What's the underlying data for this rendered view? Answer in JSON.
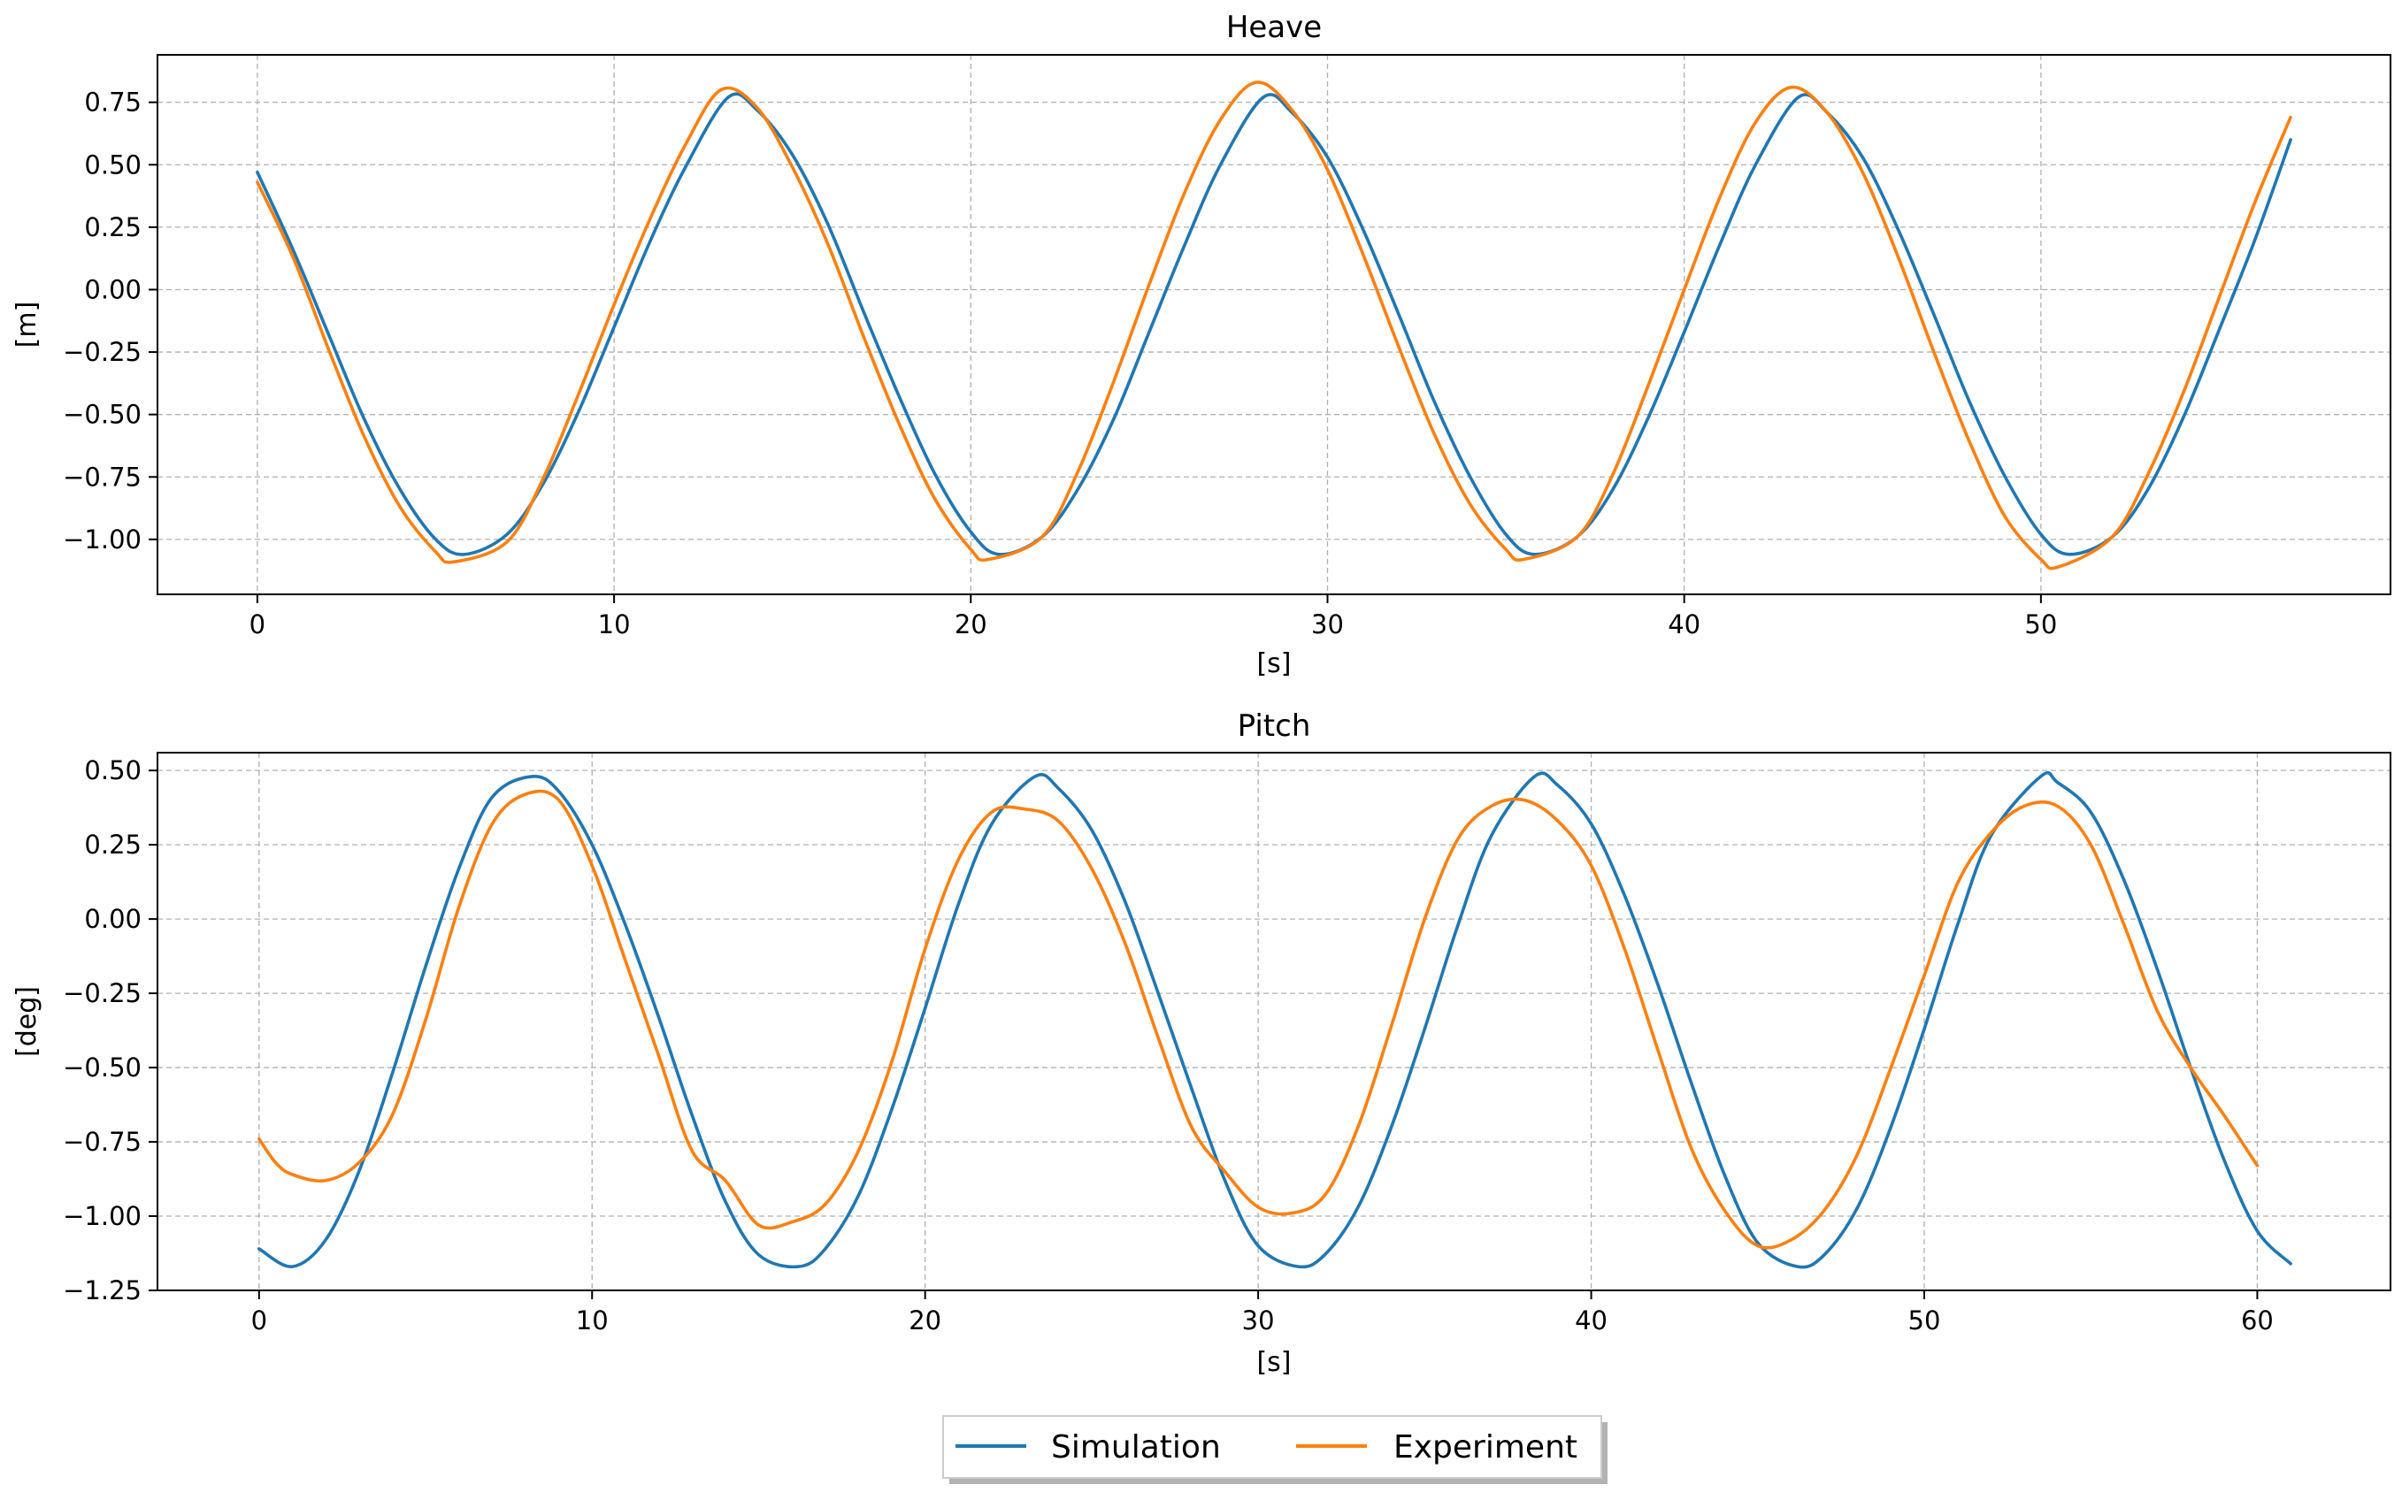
{
  "chart_data": [
    {
      "type": "line",
      "title": "Heave",
      "xlabel": "[s]",
      "ylabel": "[m]",
      "xlim": [
        -2.8,
        59.8
      ],
      "ylim": [
        -1.22,
        0.94
      ],
      "xticks": [
        0,
        10,
        20,
        30,
        40,
        50
      ],
      "xtick_labels": [
        "0",
        "10",
        "20",
        "30",
        "40",
        "50"
      ],
      "yticks": [
        -1.0,
        -0.75,
        -0.5,
        -0.25,
        0.0,
        0.25,
        0.5,
        0.75
      ],
      "ytick_labels": [
        "−1.00",
        "−0.75",
        "−0.50",
        "−0.25",
        "0.00",
        "0.25",
        "0.50",
        "0.75"
      ],
      "grid": true,
      "series": [
        {
          "name": "Simulation",
          "color": "#1f77b4",
          "x": [
            0,
            1,
            2,
            3,
            4,
            5,
            5.8,
            7,
            8,
            9,
            10,
            11,
            12,
            13.2,
            14,
            15,
            16,
            17,
            18,
            19,
            20,
            20.8,
            22,
            23,
            24,
            25,
            26,
            27,
            28.2,
            29,
            30,
            31,
            32,
            33,
            34,
            35,
            35.8,
            37,
            38,
            39,
            40,
            41,
            42,
            43.2,
            44,
            45,
            46,
            47,
            48,
            49,
            50,
            50.8,
            52,
            53,
            54,
            55,
            56,
            57
          ],
          "y": [
            0.47,
            0.16,
            -0.18,
            -0.52,
            -0.8,
            -1.0,
            -1.06,
            -0.98,
            -0.78,
            -0.49,
            -0.15,
            0.19,
            0.49,
            0.77,
            0.72,
            0.54,
            0.26,
            -0.09,
            -0.43,
            -0.74,
            -0.97,
            -1.06,
            -0.99,
            -0.8,
            -0.52,
            -0.17,
            0.18,
            0.5,
            0.77,
            0.71,
            0.53,
            0.24,
            -0.1,
            -0.45,
            -0.75,
            -0.98,
            -1.06,
            -0.99,
            -0.8,
            -0.51,
            -0.17,
            0.18,
            0.5,
            0.77,
            0.71,
            0.53,
            0.24,
            -0.1,
            -0.45,
            -0.75,
            -0.98,
            -1.06,
            -0.99,
            -0.8,
            -0.51,
            -0.16,
            0.2,
            0.6
          ]
        },
        {
          "name": "Experiment",
          "color": "#ff7f0e",
          "x": [
            0,
            1,
            2,
            3,
            4,
            5,
            5.5,
            7,
            8,
            9,
            10,
            11,
            12,
            13,
            14,
            15,
            16,
            17,
            18,
            19,
            20,
            20.5,
            22,
            23,
            24,
            25,
            26,
            27,
            28,
            29,
            30,
            31,
            32,
            33,
            34,
            35,
            35.5,
            37,
            38,
            39,
            40,
            41,
            42,
            43,
            44,
            45,
            46,
            47,
            48,
            49,
            50,
            50.5,
            52,
            53,
            54,
            55,
            56,
            57
          ],
          "y": [
            0.43,
            0.13,
            -0.24,
            -0.59,
            -0.87,
            -1.05,
            -1.09,
            -1.01,
            -0.76,
            -0.42,
            -0.06,
            0.28,
            0.58,
            0.8,
            0.73,
            0.49,
            0.18,
            -0.19,
            -0.54,
            -0.84,
            -1.04,
            -1.08,
            -0.99,
            -0.73,
            -0.37,
            0.02,
            0.39,
            0.68,
            0.83,
            0.72,
            0.48,
            0.14,
            -0.23,
            -0.58,
            -0.86,
            -1.04,
            -1.08,
            -0.99,
            -0.74,
            -0.38,
            0.0,
            0.37,
            0.67,
            0.81,
            0.71,
            0.47,
            0.13,
            -0.25,
            -0.61,
            -0.91,
            -1.08,
            -1.11,
            -0.99,
            -0.74,
            -0.41,
            -0.03,
            0.35,
            0.69
          ]
        }
      ]
    },
    {
      "type": "line",
      "title": "Pitch",
      "xlabel": "[s]",
      "ylabel": "[deg]",
      "xlim": [
        -3.05,
        64.0
      ],
      "ylim": [
        -1.25,
        0.56
      ],
      "xticks": [
        0,
        10,
        20,
        30,
        40,
        50,
        60
      ],
      "xtick_labels": [
        "0",
        "10",
        "20",
        "30",
        "40",
        "50",
        "60"
      ],
      "yticks": [
        -1.25,
        -1.0,
        -0.75,
        -0.5,
        -0.25,
        0.0,
        0.25,
        0.5
      ],
      "ytick_labels": [
        "−1.25",
        "−1.00",
        "−0.75",
        "−0.50",
        "−0.25",
        "0.00",
        "0.25",
        "0.50"
      ],
      "grid": true,
      "series": [
        {
          "name": "Simulation",
          "color": "#1f77b4",
          "x": [
            0,
            1,
            2,
            3,
            4,
            5,
            6,
            7,
            8.2,
            9,
            10,
            11,
            12,
            13,
            14,
            15,
            16.2,
            17,
            18,
            19,
            20,
            21,
            22,
            23.3,
            24,
            25,
            26,
            27,
            28,
            29,
            30,
            31.2,
            32,
            33,
            34,
            35,
            36,
            37,
            38.3,
            39,
            40,
            41,
            42,
            43,
            44,
            45,
            46.2,
            47,
            48,
            49,
            50,
            51,
            52,
            53.5,
            54,
            55,
            56,
            57,
            58,
            59,
            60,
            61
          ],
          "y": [
            -1.11,
            -1.17,
            -1.08,
            -0.85,
            -0.52,
            -0.16,
            0.17,
            0.41,
            0.48,
            0.43,
            0.25,
            -0.02,
            -0.33,
            -0.66,
            -0.95,
            -1.13,
            -1.17,
            -1.11,
            -0.93,
            -0.64,
            -0.3,
            0.05,
            0.32,
            0.48,
            0.44,
            0.3,
            0.06,
            -0.25,
            -0.57,
            -0.88,
            -1.1,
            -1.17,
            -1.13,
            -0.97,
            -0.7,
            -0.37,
            -0.02,
            0.28,
            0.48,
            0.45,
            0.32,
            0.08,
            -0.22,
            -0.55,
            -0.86,
            -1.09,
            -1.17,
            -1.13,
            -0.97,
            -0.7,
            -0.37,
            -0.02,
            0.28,
            0.48,
            0.46,
            0.36,
            0.13,
            -0.17,
            -0.5,
            -0.81,
            -1.05,
            -1.16
          ]
        },
        {
          "name": "Experiment",
          "color": "#ff7f0e",
          "x": [
            0,
            0.5,
            1,
            2,
            3,
            4,
            5,
            6,
            7,
            8,
            9,
            10,
            11,
            12,
            13,
            14,
            15,
            16,
            17,
            18,
            19,
            20,
            21,
            22,
            23,
            24,
            25,
            26,
            27,
            28,
            29,
            30,
            31,
            32,
            33,
            34,
            35,
            36,
            37,
            38,
            39,
            40,
            41,
            42,
            43,
            44,
            45,
            46,
            47,
            48,
            49,
            50,
            51,
            52,
            53,
            54,
            55,
            56,
            57,
            58,
            59,
            60
          ],
          "y": [
            -0.74,
            -0.82,
            -0.86,
            -0.88,
            -0.82,
            -0.66,
            -0.34,
            0.04,
            0.32,
            0.42,
            0.4,
            0.18,
            -0.14,
            -0.46,
            -0.78,
            -0.88,
            -1.03,
            -1.02,
            -0.96,
            -0.78,
            -0.48,
            -0.1,
            0.2,
            0.36,
            0.37,
            0.33,
            0.17,
            -0.08,
            -0.4,
            -0.7,
            -0.85,
            -0.97,
            -0.99,
            -0.93,
            -0.7,
            -0.36,
            0.0,
            0.27,
            0.38,
            0.4,
            0.33,
            0.18,
            -0.1,
            -0.44,
            -0.77,
            -0.98,
            -1.1,
            -1.08,
            -0.98,
            -0.79,
            -0.5,
            -0.19,
            0.12,
            0.29,
            0.38,
            0.38,
            0.25,
            -0.02,
            -0.31,
            -0.5,
            -0.66,
            -0.83
          ]
        }
      ]
    }
  ],
  "legend": {
    "position": "bottom-center",
    "items": [
      "Simulation",
      "Experiment"
    ]
  },
  "colors": {
    "simulation": "#1f77b4",
    "experiment": "#ff7f0e",
    "grid": "#b0b0b0"
  }
}
